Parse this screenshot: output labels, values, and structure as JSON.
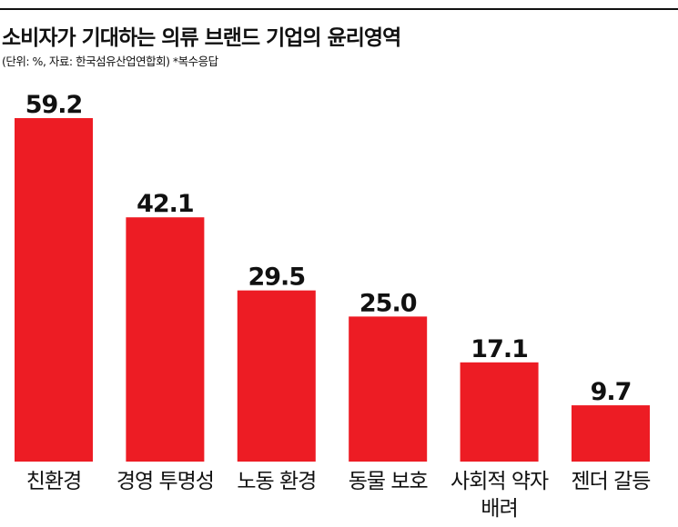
{
  "title": "소비자가 기대하는 의류 브랜드 기업의 윤리영역",
  "subtitle": "(단위: %, 자료: 한국섬유산업연합회) *복수응답",
  "chart_data": {
    "type": "bar",
    "categories": [
      [
        "친환경"
      ],
      [
        "경영 투명성"
      ],
      [
        "노동 환경"
      ],
      [
        "동물 보호"
      ],
      [
        "사회적 약자",
        "배려"
      ],
      [
        "젠더 갈등"
      ]
    ],
    "values": [
      59.2,
      42.1,
      29.5,
      25.0,
      17.1,
      9.7
    ],
    "value_labels": [
      "59.2",
      "42.1",
      "29.5",
      "25.0",
      "17.1",
      "9.7"
    ],
    "bar_color": "#ed1c24",
    "ylim": [
      0,
      59.2
    ],
    "grid": false,
    "legend": "none"
  }
}
